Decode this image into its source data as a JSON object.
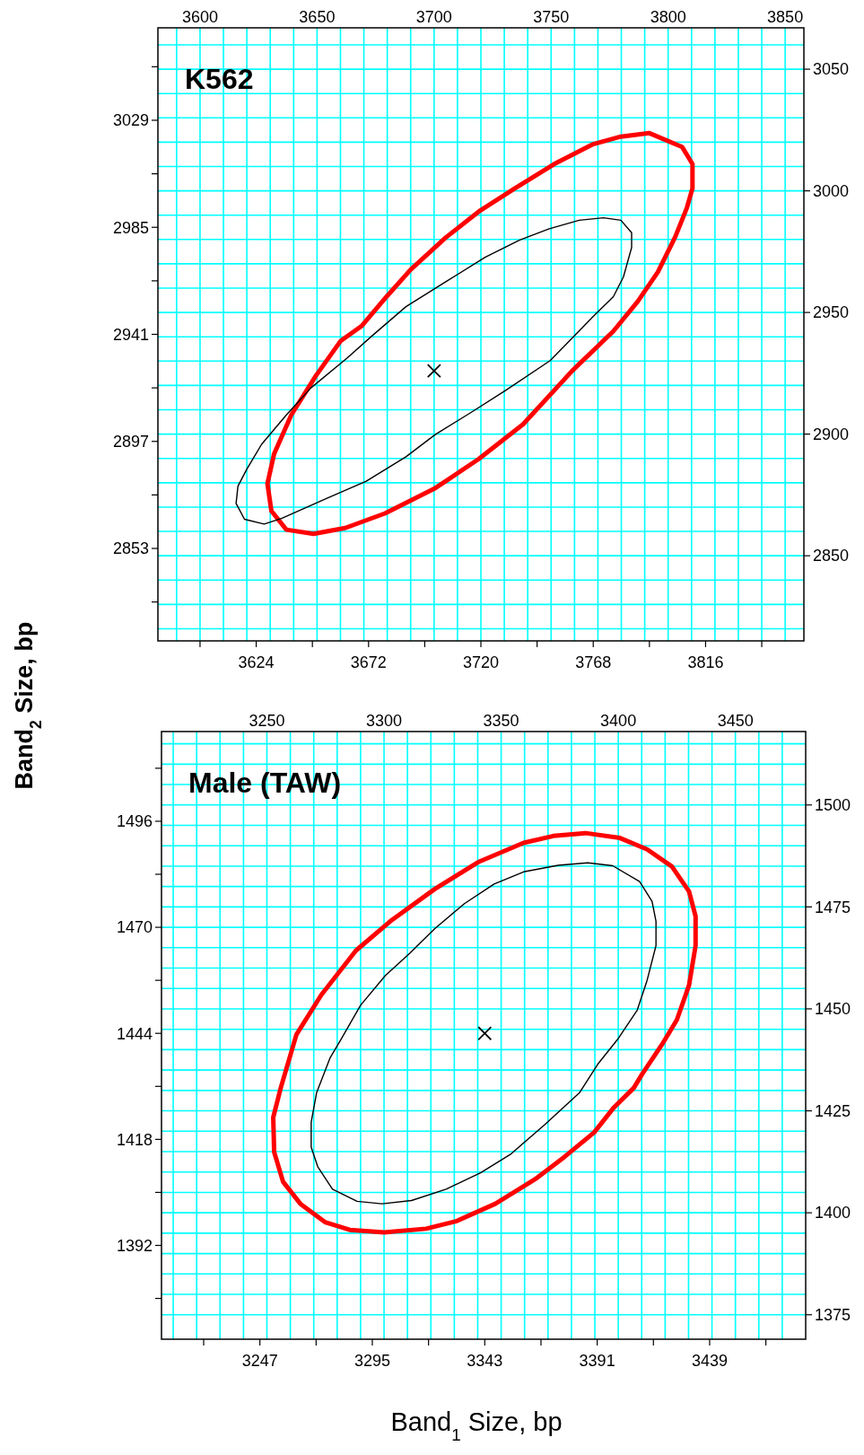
{
  "chart_data": [
    {
      "type": "scatter",
      "title": "K562",
      "ylabel": "Band$_{2}$ Size,  bp",
      "xlim": [
        3582,
        3858
      ],
      "x2lim": [
        3582,
        3858
      ],
      "ylim": [
        2815,
        3067
      ],
      "y2lim": [
        2815,
        3067
      ],
      "xticks": [
        {
          "value": 3600,
          "label": null
        },
        3624,
        {
          "value": 3648,
          "label": null
        },
        3672,
        {
          "value": 3696,
          "label": null
        },
        3720,
        {
          "value": 3744,
          "label": null
        },
        3768,
        {
          "value": 3792,
          "label": null
        },
        3816,
        {
          "value": 3840,
          "label": null
        }
      ],
      "x2ticks": [
        {
          "value": 3590,
          "label": null
        },
        3600,
        {
          "value": 3610,
          "label": null
        },
        {
          "value": 3620,
          "label": null
        },
        {
          "value": 3630,
          "label": null
        },
        {
          "value": 3640,
          "label": null
        },
        3650,
        {
          "value": 3660,
          "label": null
        },
        {
          "value": 3670,
          "label": null
        },
        {
          "value": 3680,
          "label": null
        },
        {
          "value": 3690,
          "label": null
        },
        3700,
        {
          "value": 3710,
          "label": null
        },
        {
          "value": 3720,
          "label": null
        },
        {
          "value": 3730,
          "label": null
        },
        {
          "value": 3740,
          "label": null
        },
        3750,
        {
          "value": 3760,
          "label": null
        },
        {
          "value": 3770,
          "label": null
        },
        {
          "value": 3780,
          "label": null
        },
        {
          "value": 3790,
          "label": null
        },
        3800,
        {
          "value": 3810,
          "label": null
        },
        {
          "value": 3820,
          "label": null
        },
        {
          "value": 3830,
          "label": null
        },
        {
          "value": 3840,
          "label": null
        },
        3850
      ],
      "yticks": [
        {
          "value": 2831,
          "label": null
        },
        2853,
        {
          "value": 2875,
          "label": null
        },
        2897,
        {
          "value": 2919,
          "label": null
        },
        2941,
        {
          "value": 2963,
          "label": null
        },
        2985,
        {
          "value": 3007,
          "label": null
        },
        3029,
        {
          "value": 3051,
          "label": null
        }
      ],
      "y2ticks": [
        {
          "value": 2820,
          "label": null
        },
        {
          "value": 2830,
          "label": null
        },
        {
          "value": 2840,
          "label": null
        },
        2850,
        {
          "value": 2860,
          "label": null
        },
        {
          "value": 2870,
          "label": null
        },
        {
          "value": 2880,
          "label": null
        },
        {
          "value": 2890,
          "label": null
        },
        2900,
        {
          "value": 2910,
          "label": null
        },
        {
          "value": 2920,
          "label": null
        },
        {
          "value": 2930,
          "label": null
        },
        {
          "value": 2940,
          "label": null
        },
        2950,
        {
          "value": 2960,
          "label": null
        },
        {
          "value": 2970,
          "label": null
        },
        {
          "value": 2980,
          "label": null
        },
        {
          "value": 2990,
          "label": null
        },
        3000,
        {
          "value": 3010,
          "label": null
        },
        {
          "value": 3020,
          "label": null
        },
        {
          "value": 3030,
          "label": null
        },
        {
          "value": 3040,
          "label": null
        },
        3050,
        {
          "value": 3060,
          "label": null
        }
      ],
      "grid": true,
      "series": [
        {
          "type": "scatter",
          "marker": "cross",
          "color": "#000000",
          "x": [
            3700
          ],
          "values": [
            2926
          ]
        }
      ]
    },
    {
      "type": "scatter",
      "title": "Male (TAW)",
      "xlabel": "Band$_{1}$ Size,  bp",
      "xlim": [
        3205,
        3480
      ],
      "x2lim": [
        3205,
        3480
      ],
      "ylim": [
        1369,
        1518
      ],
      "y2lim": [
        1369,
        1518
      ],
      "xticks": [
        {
          "value": 3223,
          "label": null
        },
        3247,
        {
          "value": 3271,
          "label": null
        },
        3295,
        {
          "value": 3319,
          "label": null
        },
        3343,
        {
          "value": 3367,
          "label": null
        },
        3391,
        {
          "value": 3415,
          "label": null
        },
        3439,
        {
          "value": 3463,
          "label": null
        }
      ],
      "x2ticks": [
        {
          "value": 3210,
          "label": null
        },
        {
          "value": 3220,
          "label": null
        },
        {
          "value": 3230,
          "label": null
        },
        {
          "value": 3240,
          "label": null
        },
        3250,
        {
          "value": 3260,
          "label": null
        },
        {
          "value": 3270,
          "label": null
        },
        {
          "value": 3280,
          "label": null
        },
        {
          "value": 3290,
          "label": null
        },
        3300,
        {
          "value": 3310,
          "label": null
        },
        {
          "value": 3320,
          "label": null
        },
        {
          "value": 3330,
          "label": null
        },
        {
          "value": 3340,
          "label": null
        },
        3350,
        {
          "value": 3360,
          "label": null
        },
        {
          "value": 3370,
          "label": null
        },
        {
          "value": 3380,
          "label": null
        },
        {
          "value": 3390,
          "label": null
        },
        3400,
        {
          "value": 3410,
          "label": null
        },
        {
          "value": 3420,
          "label": null
        },
        {
          "value": 3430,
          "label": null
        },
        {
          "value": 3440,
          "label": null
        },
        3450,
        {
          "value": 3460,
          "label": null
        },
        {
          "value": 3470,
          "label": null
        }
      ],
      "yticks": [
        {
          "value": 1379,
          "label": null
        },
        1392,
        {
          "value": 1405,
          "label": null
        },
        1418,
        {
          "value": 1431,
          "label": null
        },
        1444,
        {
          "value": 1457,
          "label": null
        },
        1470,
        {
          "value": 1483,
          "label": null
        },
        1496,
        {
          "value": 1509,
          "label": null
        }
      ],
      "y2ticks": [
        1375,
        {
          "value": 1380,
          "label": null
        },
        {
          "value": 1385,
          "label": null
        },
        {
          "value": 1390,
          "label": null
        },
        {
          "value": 1395,
          "label": null
        },
        1400,
        {
          "value": 1405,
          "label": null
        },
        {
          "value": 1410,
          "label": null
        },
        {
          "value": 1415,
          "label": null
        },
        {
          "value": 1420,
          "label": null
        },
        1425,
        {
          "value": 1430,
          "label": null
        },
        {
          "value": 1435,
          "label": null
        },
        {
          "value": 1440,
          "label": null
        },
        {
          "value": 1445,
          "label": null
        },
        1450,
        {
          "value": 1455,
          "label": null
        },
        {
          "value": 1460,
          "label": null
        },
        {
          "value": 1465,
          "label": null
        },
        {
          "value": 1470,
          "label": null
        },
        1475,
        {
          "value": 1480,
          "label": null
        },
        {
          "value": 1485,
          "label": null
        },
        {
          "value": 1490,
          "label": null
        },
        {
          "value": 1495,
          "label": null
        },
        1500,
        {
          "value": 1505,
          "label": null
        },
        {
          "value": 1510,
          "label": null
        },
        {
          "value": 1515,
          "label": null
        }
      ],
      "grid": true,
      "series": [
        {
          "type": "scatter",
          "marker": "cross",
          "color": "#000000",
          "x": [
            3343
          ],
          "values": [
            1444
          ]
        }
      ]
    }
  ]
}
